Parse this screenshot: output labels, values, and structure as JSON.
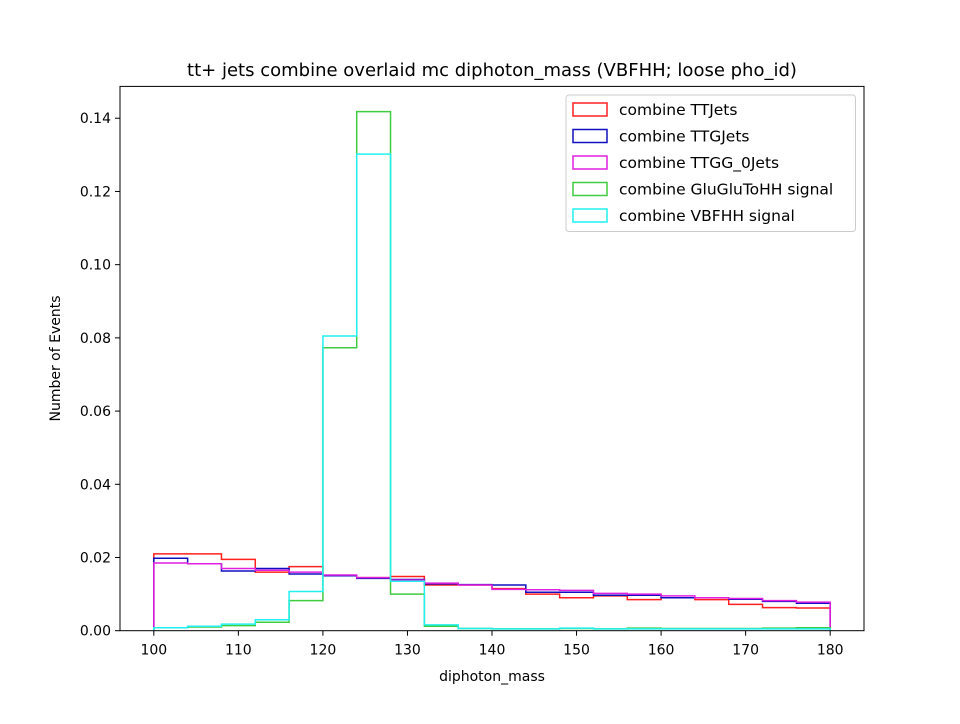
{
  "chart_data": {
    "type": "histogram-step",
    "title": "tt+ jets combine overlaid mc diphoton_mass (VBFHH; loose pho_id)",
    "xlabel": "diphoton_mass",
    "ylabel": "Number of Events",
    "xlim": [
      96,
      184
    ],
    "ylim": [
      0,
      0.1487
    ],
    "xticks": [
      100,
      110,
      120,
      130,
      140,
      150,
      160,
      170,
      180
    ],
    "yticks": [
      0.0,
      0.02,
      0.04,
      0.06,
      0.08,
      0.1,
      0.12,
      0.14
    ],
    "ytick_labels": [
      "0.00",
      "0.02",
      "0.04",
      "0.06",
      "0.08",
      "0.10",
      "0.12",
      "0.14"
    ],
    "grid": false,
    "legend_position": "upper right",
    "bin_edges": [
      100,
      104,
      108,
      112,
      116,
      120,
      124,
      128,
      132,
      136,
      140,
      144,
      148,
      152,
      156,
      160,
      164,
      168,
      172,
      176,
      180
    ],
    "series": [
      {
        "name": "combine TTJets",
        "color": "#ff2020",
        "values": [
          0.021,
          0.021,
          0.0195,
          0.016,
          0.0175,
          0.015,
          0.0145,
          0.0148,
          0.0125,
          0.0125,
          0.0115,
          0.01,
          0.009,
          0.0095,
          0.0085,
          0.009,
          0.0085,
          0.0072,
          0.0063,
          0.0062
        ]
      },
      {
        "name": "combine TTGJets",
        "color": "#1010c0",
        "values": [
          0.0198,
          0.0183,
          0.0163,
          0.017,
          0.0155,
          0.015,
          0.0143,
          0.014,
          0.0128,
          0.0126,
          0.0125,
          0.0105,
          0.0105,
          0.0097,
          0.0097,
          0.009,
          0.009,
          0.0086,
          0.008,
          0.0075
        ]
      },
      {
        "name": "combine TTGG_0Jets",
        "color": "#e020e0",
        "values": [
          0.0185,
          0.0183,
          0.017,
          0.0165,
          0.016,
          0.0152,
          0.0145,
          0.0138,
          0.013,
          0.0125,
          0.0113,
          0.0112,
          0.011,
          0.0102,
          0.01,
          0.0095,
          0.009,
          0.0088,
          0.0082,
          0.0078
        ]
      },
      {
        "name": "combine GluGluToHH signal",
        "color": "#40cc40",
        "values": [
          0.0008,
          0.001,
          0.0014,
          0.0023,
          0.0082,
          0.0773,
          0.1418,
          0.01,
          0.0012,
          0.0006,
          0.0005,
          0.0005,
          0.0006,
          0.0005,
          0.0007,
          0.0006,
          0.0006,
          0.0006,
          0.0007,
          0.0008
        ]
      },
      {
        "name": "combine VBFHH signal",
        "color": "#20f0f0",
        "values": [
          0.0008,
          0.0012,
          0.0018,
          0.003,
          0.0107,
          0.0805,
          0.1302,
          0.0135,
          0.0016,
          0.0006,
          0.0005,
          0.0005,
          0.0007,
          0.0005,
          0.0005,
          0.0005,
          0.0005,
          0.0005,
          0.0005,
          0.0005
        ]
      }
    ]
  }
}
